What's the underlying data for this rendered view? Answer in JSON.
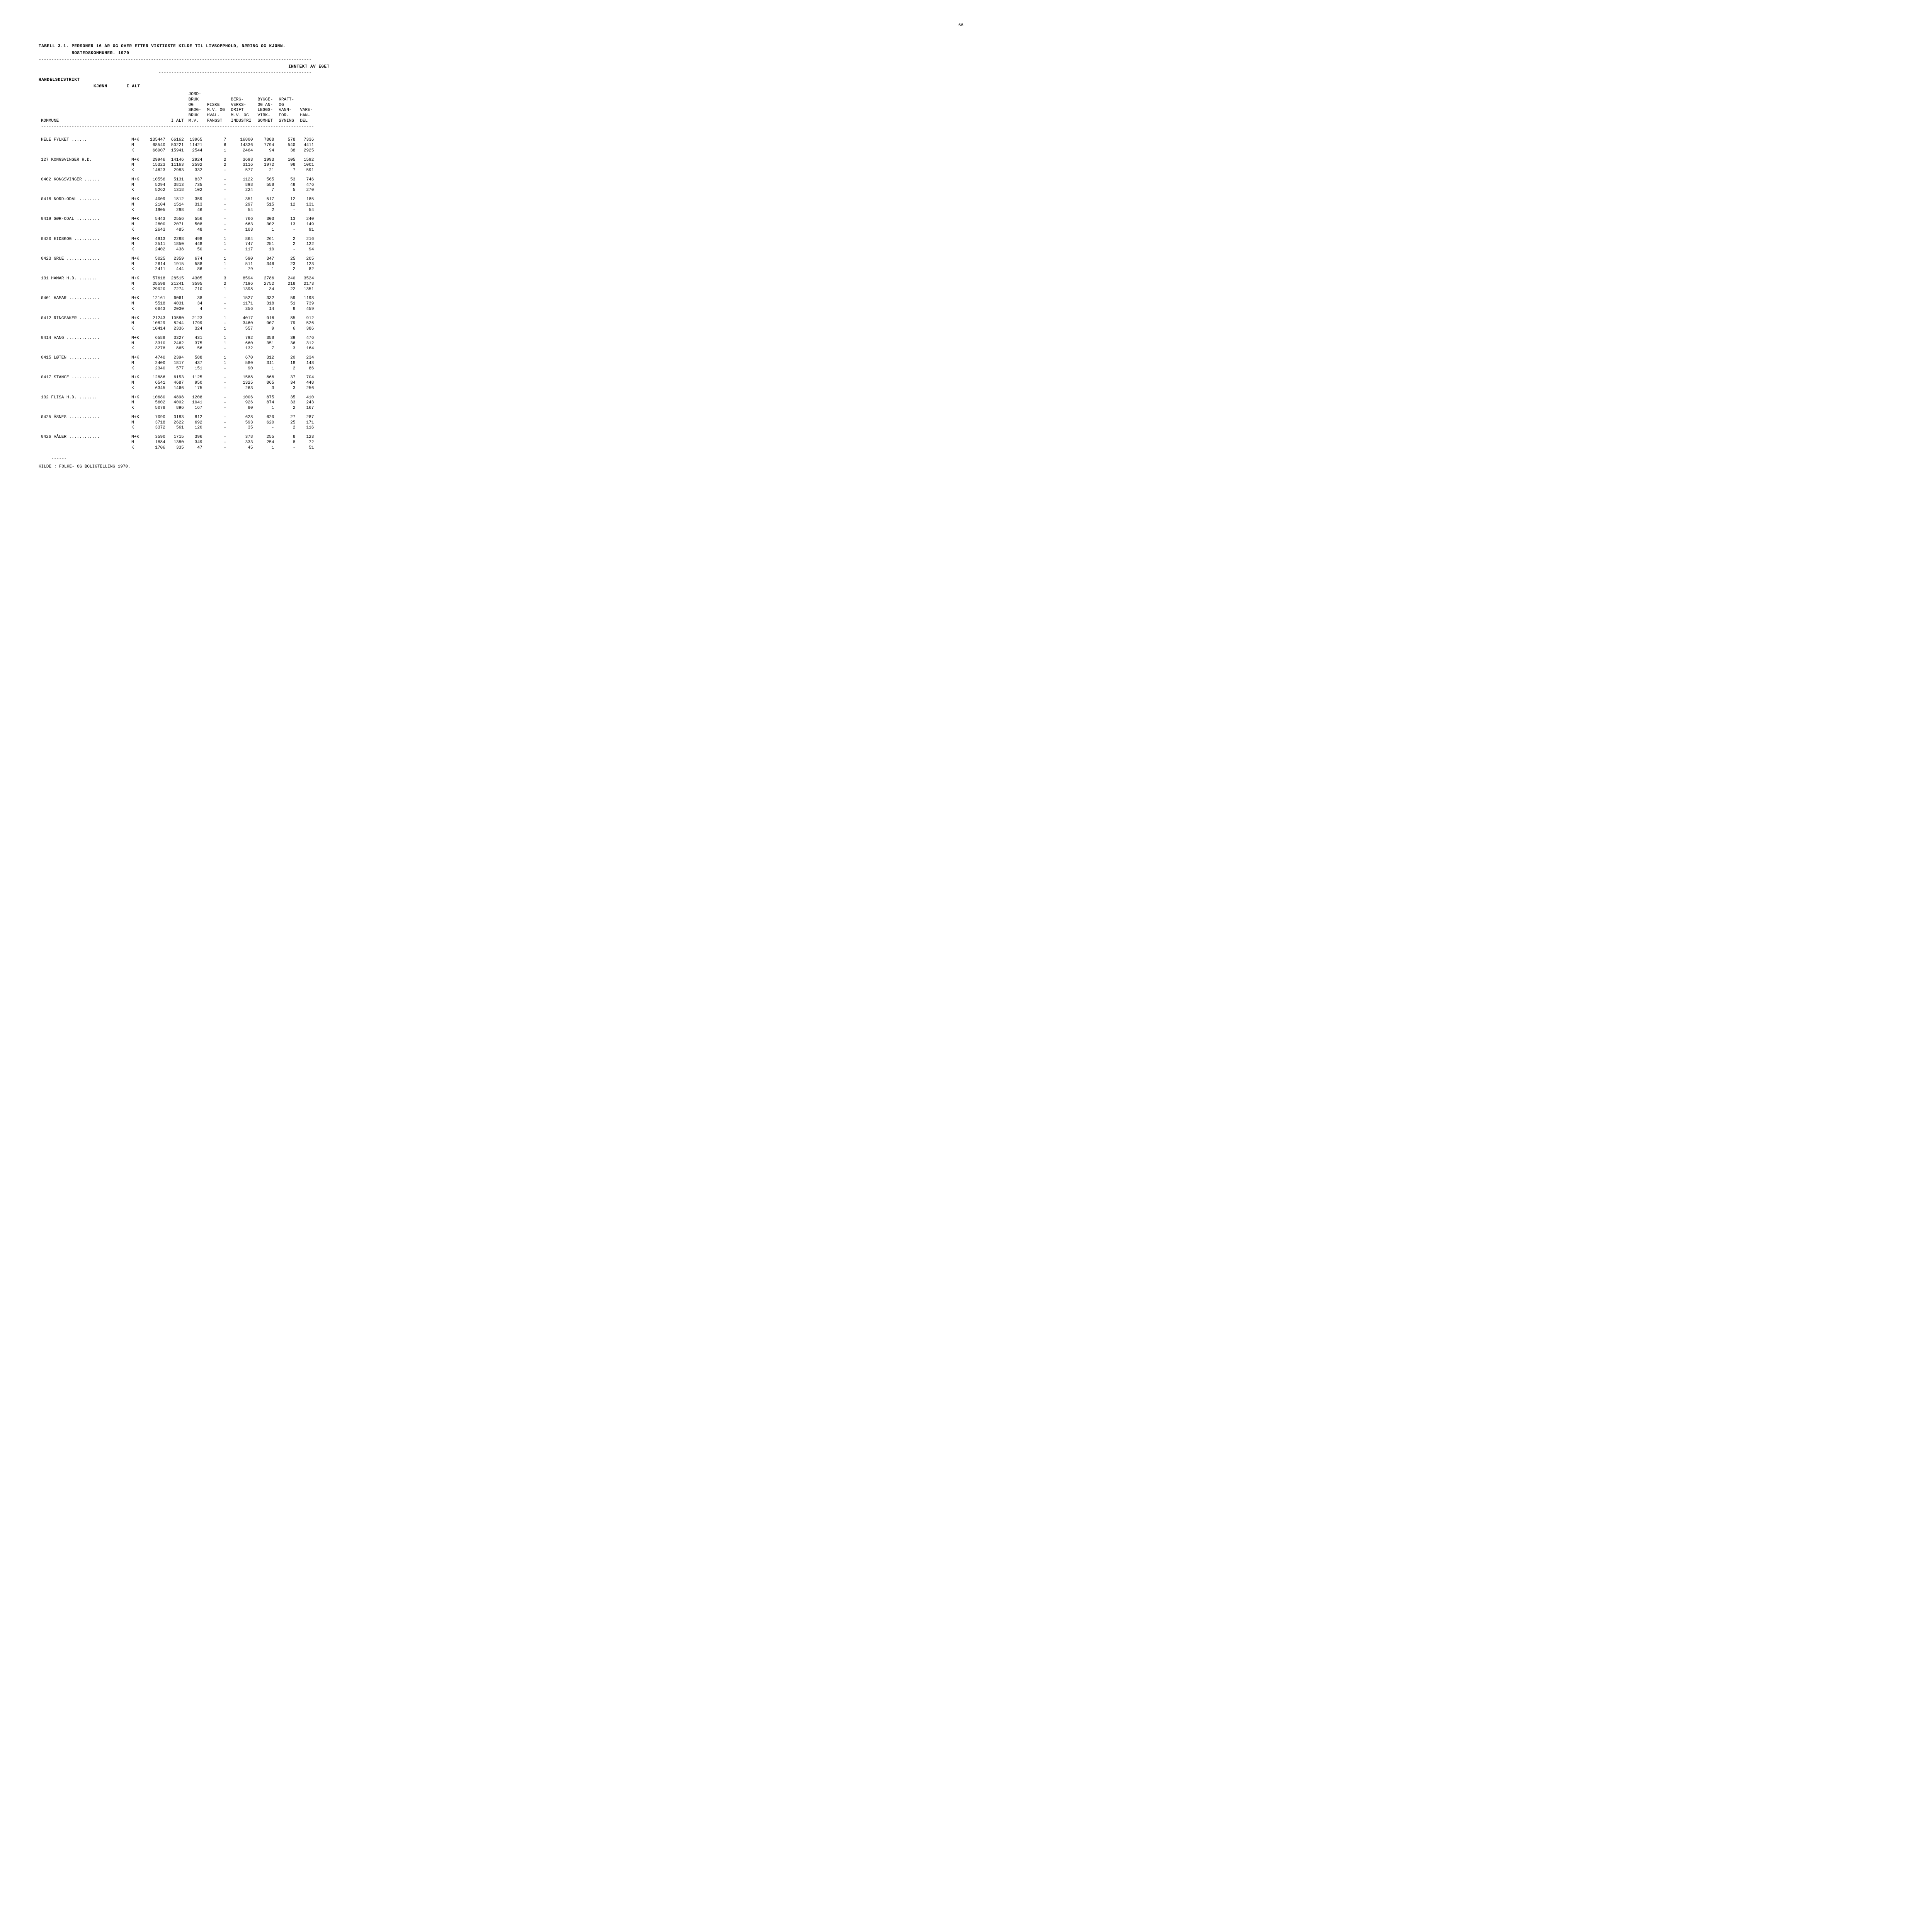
{
  "page_number": "66",
  "title_line1": "TABELL 3.1. PERSONER 16 ÅR OG OVER ETTER VIKTIGSTE KILDE TIL LIVSOPPHOLD, NÆRING OG KJØNN.",
  "title_line2": "            BOSTEDSKOMMUNER. 1970",
  "section_right_header": "INNTEKT AV EGET",
  "subheader_left1": "HANDELSDISTRIKT",
  "subheader_left2": "                    KJØNN       I ALT",
  "subheader_left3": "KOMMUNE",
  "columns": {
    "c1": "I ALT",
    "c2": "JORD-\nBRUK\nOG\nSKOG-\nBRUK\nM.V.",
    "c3": "FISKE\nM.V. OG\nHVAL-\nFANGST",
    "c4": "BERG-\nVERKS-\nDRIFT\nM.V. OG\nINDUSTRI",
    "c5": "BYGGE-\nOG AN-\nLEGGS-\nVIRK-\nSOMHET",
    "c6": "KRAFT-\nOG\nVANN-\nFOR-\nSYNING",
    "c7": "VARE-\nHAN-\nDEL"
  },
  "footer": "KILDE : FOLKE- OG BOLIGTELLING 1970.",
  "groups": [
    {
      "label": "     HELE FYLKET ......",
      "rows": [
        {
          "k": "M+K",
          "v": [
            "135447",
            "66162",
            "13965",
            "7",
            "16800",
            "7888",
            "578",
            "7336"
          ]
        },
        {
          "k": "M",
          "v": [
            "68540",
            "50221",
            "11421",
            "6",
            "14336",
            "7794",
            "540",
            "4411"
          ]
        },
        {
          "k": "K",
          "v": [
            "66907",
            "15941",
            "2544",
            "1",
            "2464",
            "94",
            "38",
            "2925"
          ]
        }
      ]
    },
    {
      "label": "127  KONGSVINGER H.D.",
      "rows": [
        {
          "k": "M+K",
          "v": [
            "29946",
            "14146",
            "2924",
            "2",
            "3693",
            "1993",
            "105",
            "1592"
          ]
        },
        {
          "k": "M",
          "v": [
            "15323",
            "11163",
            "2592",
            "2",
            "3116",
            "1972",
            "98",
            "1001"
          ]
        },
        {
          "k": "K",
          "v": [
            "14623",
            "2983",
            "332",
            "-",
            "577",
            "21",
            "7",
            "591"
          ]
        }
      ]
    },
    {
      "label": "0402 KONGSVINGER ......",
      "rows": [
        {
          "k": "M+K",
          "v": [
            "10556",
            "5131",
            "837",
            "-",
            "1122",
            "565",
            "53",
            "746"
          ]
        },
        {
          "k": "M",
          "v": [
            "5294",
            "3813",
            "735",
            "-",
            "898",
            "558",
            "48",
            "476"
          ]
        },
        {
          "k": "K",
          "v": [
            "5262",
            "1318",
            "102",
            "-",
            "224",
            "7",
            "5",
            "270"
          ]
        }
      ]
    },
    {
      "label": "0418 NORD-ODAL ........",
      "rows": [
        {
          "k": "M+K",
          "v": [
            "4009",
            "1812",
            "359",
            "-",
            "351",
            "517",
            "12",
            "185"
          ]
        },
        {
          "k": "M",
          "v": [
            "2104",
            "1514",
            "313",
            "-",
            "297",
            "515",
            "12",
            "131"
          ]
        },
        {
          "k": "K",
          "v": [
            "1905",
            "298",
            "46",
            "-",
            "54",
            "2",
            "-",
            "54"
          ]
        }
      ]
    },
    {
      "label": "0419 SØR-ODAL .........",
      "rows": [
        {
          "k": "M+K",
          "v": [
            "5443",
            "2556",
            "556",
            "-",
            "766",
            "303",
            "13",
            "240"
          ]
        },
        {
          "k": "M",
          "v": [
            "2800",
            "2071",
            "508",
            "-",
            "663",
            "302",
            "13",
            "149"
          ]
        },
        {
          "k": "K",
          "v": [
            "2643",
            "485",
            "48",
            "-",
            "103",
            "1",
            "-",
            "91"
          ]
        }
      ]
    },
    {
      "label": "0420 EIDSKOG ..........",
      "rows": [
        {
          "k": "M+K",
          "v": [
            "4913",
            "2288",
            "498",
            "1",
            "864",
            "261",
            "2",
            "216"
          ]
        },
        {
          "k": "M",
          "v": [
            "2511",
            "1850",
            "448",
            "1",
            "747",
            "251",
            "2",
            "122"
          ]
        },
        {
          "k": "K",
          "v": [
            "2402",
            "438",
            "50",
            "-",
            "117",
            "10",
            "-",
            "94"
          ]
        }
      ]
    },
    {
      "label": "0423 GRUE .............",
      "rows": [
        {
          "k": "M+K",
          "v": [
            "5025",
            "2359",
            "674",
            "1",
            "590",
            "347",
            "25",
            "205"
          ]
        },
        {
          "k": "M",
          "v": [
            "2614",
            "1915",
            "588",
            "1",
            "511",
            "346",
            "23",
            "123"
          ]
        },
        {
          "k": "K",
          "v": [
            "2411",
            "444",
            "86",
            "-",
            "79",
            "1",
            "2",
            "82"
          ]
        }
      ]
    },
    {
      "label": "131  HAMAR H.D. .......",
      "rows": [
        {
          "k": "M+K",
          "v": [
            "57618",
            "28515",
            "4305",
            "3",
            "8594",
            "2786",
            "240",
            "3524"
          ]
        },
        {
          "k": "M",
          "v": [
            "28598",
            "21241",
            "3595",
            "2",
            "7196",
            "2752",
            "218",
            "2173"
          ]
        },
        {
          "k": "K",
          "v": [
            "29020",
            "7274",
            "710",
            "1",
            "1398",
            "34",
            "22",
            "1351"
          ]
        }
      ]
    },
    {
      "label": "0401 HAMAR ............",
      "rows": [
        {
          "k": "M+K",
          "v": [
            "12161",
            "6061",
            "38",
            "-",
            "1527",
            "332",
            "59",
            "1198"
          ]
        },
        {
          "k": "M",
          "v": [
            "5518",
            "4031",
            "34",
            "-",
            "1171",
            "318",
            "51",
            "739"
          ]
        },
        {
          "k": "K",
          "v": [
            "6643",
            "2030",
            "4",
            "-",
            "356",
            "14",
            "8",
            "459"
          ]
        }
      ]
    },
    {
      "label": "0412 RINGSAKER ........",
      "rows": [
        {
          "k": "M+K",
          "v": [
            "21243",
            "10580",
            "2123",
            "1",
            "4017",
            "916",
            "85",
            "912"
          ]
        },
        {
          "k": "M",
          "v": [
            "10829",
            "8244",
            "1799",
            "-",
            "3460",
            "907",
            "79",
            "526"
          ]
        },
        {
          "k": "K",
          "v": [
            "10414",
            "2336",
            "324",
            "1",
            "557",
            "9",
            "6",
            "386"
          ]
        }
      ]
    },
    {
      "label": "0414 VANG .............",
      "rows": [
        {
          "k": "M+K",
          "v": [
            "6588",
            "3327",
            "431",
            "1",
            "792",
            "358",
            "39",
            "476"
          ]
        },
        {
          "k": "M",
          "v": [
            "3310",
            "2462",
            "375",
            "1",
            "660",
            "351",
            "36",
            "312"
          ]
        },
        {
          "k": "K",
          "v": [
            "3278",
            "865",
            "56",
            "-",
            "132",
            "7",
            "3",
            "164"
          ]
        }
      ]
    },
    {
      "label": "0415 LØTEN ............",
      "rows": [
        {
          "k": "M+K",
          "v": [
            "4740",
            "2394",
            "588",
            "1",
            "670",
            "312",
            "20",
            "234"
          ]
        },
        {
          "k": "M",
          "v": [
            "2400",
            "1817",
            "437",
            "1",
            "580",
            "311",
            "18",
            "148"
          ]
        },
        {
          "k": "K",
          "v": [
            "2340",
            "577",
            "151",
            "-",
            "90",
            "1",
            "2",
            "86"
          ]
        }
      ]
    },
    {
      "label": "0417 STANGE ...........",
      "rows": [
        {
          "k": "M+K",
          "v": [
            "12886",
            "6153",
            "1125",
            "-",
            "1588",
            "868",
            "37",
            "704"
          ]
        },
        {
          "k": "M",
          "v": [
            "6541",
            "4687",
            "950",
            "-",
            "1325",
            "865",
            "34",
            "448"
          ]
        },
        {
          "k": "K",
          "v": [
            "6345",
            "1466",
            "175",
            "-",
            "263",
            "3",
            "3",
            "256"
          ]
        }
      ]
    },
    {
      "label": "132  FLISA H.D. .......",
      "rows": [
        {
          "k": "M+K",
          "v": [
            "10680",
            "4898",
            "1208",
            "-",
            "1006",
            "875",
            "35",
            "410"
          ]
        },
        {
          "k": "M",
          "v": [
            "5602",
            "4002",
            "1041",
            "-",
            "926",
            "874",
            "33",
            "243"
          ]
        },
        {
          "k": "K",
          "v": [
            "5078",
            "896",
            "167",
            "-",
            "80",
            "1",
            "2",
            "167"
          ]
        }
      ]
    },
    {
      "label": "0425 ÅSNES ............",
      "rows": [
        {
          "k": "M+K",
          "v": [
            "7090",
            "3183",
            "812",
            "-",
            "628",
            "620",
            "27",
            "287"
          ]
        },
        {
          "k": "M",
          "v": [
            "3718",
            "2622",
            "692",
            "-",
            "593",
            "620",
            "25",
            "171"
          ]
        },
        {
          "k": "K",
          "v": [
            "3372",
            "561",
            "120",
            "-",
            "35",
            "-",
            "2",
            "116"
          ]
        }
      ]
    },
    {
      "label": "0426 VÅLER ............",
      "rows": [
        {
          "k": "M+K",
          "v": [
            "3590",
            "1715",
            "396",
            "-",
            "378",
            "255",
            "8",
            "123"
          ]
        },
        {
          "k": "M",
          "v": [
            "1884",
            "1380",
            "349",
            "-",
            "333",
            "254",
            "8",
            "72"
          ]
        },
        {
          "k": "K",
          "v": [
            "1706",
            "335",
            "47",
            "-",
            "45",
            "1",
            "-",
            "51"
          ]
        }
      ]
    }
  ],
  "style": {
    "font_family": "Courier New",
    "font_size_pt": 11,
    "text_color": "#000000",
    "background_color": "#ffffff",
    "col_widths_ch": [
      24,
      4,
      9,
      9,
      9,
      9,
      9,
      9,
      9,
      9
    ]
  }
}
